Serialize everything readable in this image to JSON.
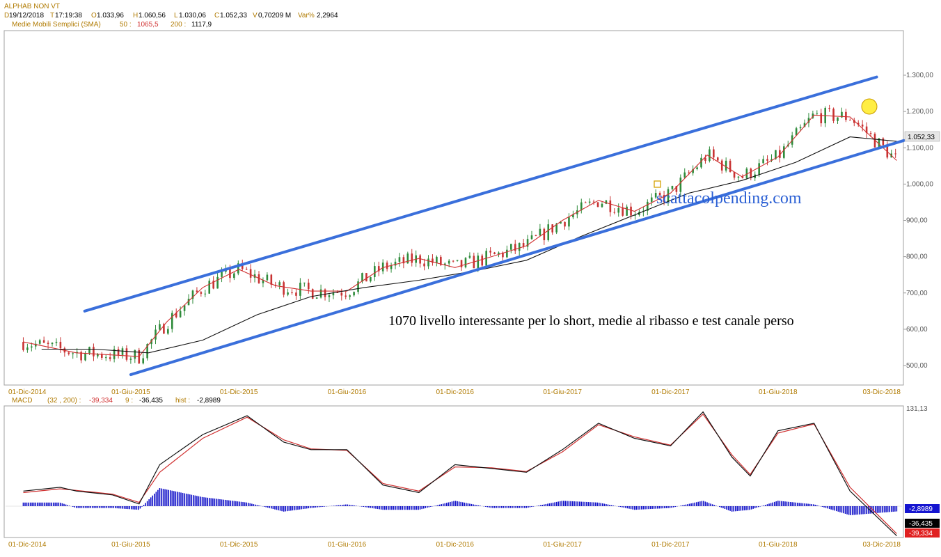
{
  "header": {
    "symbol": "ALPHAB NON VT",
    "d_key": "D",
    "date": "19/12/2018",
    "t_key": "T",
    "time": "17:19:38",
    "o_key": "O",
    "open": "1.033,96",
    "h_key": "H",
    "high": "1.060,56",
    "l_key": "L",
    "low": "1.030,06",
    "c_key": "C",
    "close": "1.052,33",
    "v_key": "V",
    "volume": "0,70209 M",
    "var_key": "Var%",
    "var": "2,2964"
  },
  "sma_header": {
    "label": "Medie Mobili Semplici (SMA)",
    "p1_key": "50 :",
    "p1_val": "1065,5",
    "p2_key": "200 :",
    "p2_val": "1117,9"
  },
  "macd_header": {
    "label": "MACD",
    "params": "(32 , 200) :",
    "macd_val": "-39,334",
    "sig_key": "9 :",
    "sig_val": "-36,435",
    "hist_key": "hist :",
    "hist_val": "-2,8989"
  },
  "annotations": {
    "watermark": "scattacolpending.com",
    "note": "1070  livello interessante per lo short, medie al ribasso e test canale perso"
  },
  "colors": {
    "channel": "#3a6fdb",
    "candle_up": "#2e8b3a",
    "candle_down": "#c83232",
    "sma50": "#d03030",
    "sma200": "#111111",
    "macd_line": "#111111",
    "signal_line": "#d03030",
    "histogram": "#1010c8",
    "tick_text": "#b07a00",
    "badge_close": "#e6e6e6",
    "badge_hist": "#1515d0",
    "badge_sig": "#000000",
    "badge_macd": "#e02020",
    "highlight": "#ffee44"
  },
  "chart_data": [
    {
      "type": "candlestick",
      "title": "",
      "x_ticks": [
        "01-Dic-2014",
        "01-Giu-2015",
        "01-Dic-2015",
        "01-Giu-2016",
        "01-Dic-2016",
        "01-Giu-2017",
        "01-Dic-2017",
        "01-Giu-2018",
        "03-Dic-2018"
      ],
      "y_ticks": [
        "500,00",
        "600,00",
        "700,00",
        "800,00",
        "900,00",
        "1.000,00",
        "1.100,00",
        "1.200,00",
        "1.300,00"
      ],
      "ylim": [
        475,
        1310
      ],
      "last_price_label": "1.052,33",
      "series": [
        {
          "name": "Medie Mobili Semplici (SMA) 50",
          "role": "sma50",
          "x": [
            "2014-12-01",
            "2015-03-01",
            "2015-06-15",
            "2015-08-01",
            "2015-10-01",
            "2015-12-01",
            "2016-02-01",
            "2016-04-01",
            "2016-06-01",
            "2016-08-01",
            "2016-10-01",
            "2016-12-01",
            "2017-02-01",
            "2017-04-01",
            "2017-06-01",
            "2017-08-01",
            "2017-10-01",
            "2017-12-01",
            "2018-02-01",
            "2018-04-01",
            "2018-06-01",
            "2018-08-01",
            "2018-10-01",
            "2018-12-19"
          ],
          "y": [
            565,
            535,
            525,
            620,
            715,
            765,
            720,
            705,
            705,
            770,
            795,
            770,
            800,
            830,
            900,
            955,
            925,
            975,
            1080,
            1020,
            1075,
            1190,
            1185,
            1065
          ]
        },
        {
          "name": "Medie Mobili Semplici (SMA) 200",
          "role": "sma200",
          "x": [
            "2015-01-01",
            "2015-04-01",
            "2015-07-01",
            "2015-10-01",
            "2016-01-01",
            "2016-04-01",
            "2016-07-01",
            "2016-10-01",
            "2017-01-01",
            "2017-04-01",
            "2017-07-01",
            "2017-10-01",
            "2018-01-01",
            "2018-04-01",
            "2018-07-01",
            "2018-10-01",
            "2018-12-19"
          ],
          "y": [
            545,
            545,
            535,
            570,
            640,
            690,
            715,
            735,
            760,
            790,
            855,
            915,
            975,
            1010,
            1060,
            1130,
            1118
          ]
        }
      ],
      "channel_upper": {
        "x": [
          "2015-03-15",
          "2018-11-15"
        ],
        "y": [
          650,
          1295
        ]
      },
      "channel_lower": {
        "x": [
          "2015-06-01",
          "2018-12-31"
        ],
        "y": [
          475,
          1120
        ]
      }
    },
    {
      "type": "line",
      "title": "MACD",
      "x_ticks": [
        "01-Dic-2014",
        "01-Giu-2015",
        "01-Dic-2015",
        "01-Giu-2016",
        "01-Dic-2016",
        "01-Giu-2017",
        "01-Dic-2017",
        "01-Giu-2018",
        "03-Dic-2018"
      ],
      "y_ticks": [
        "131,13"
      ],
      "ylim": [
        -45,
        131.13
      ],
      "series": [
        {
          "name": "MACD",
          "role": "macd",
          "x": [
            "2014-12-01",
            "2015-02-01",
            "2015-03-01",
            "2015-05-01",
            "2015-06-15",
            "2015-07-20",
            "2015-10-01",
            "2015-12-15",
            "2016-02-15",
            "2016-04-01",
            "2016-06-01",
            "2016-08-01",
            "2016-10-01",
            "2016-12-01",
            "2017-02-01",
            "2017-04-01",
            "2017-06-01",
            "2017-08-01",
            "2017-10-01",
            "2017-12-01",
            "2018-01-25",
            "2018-03-15",
            "2018-04-15",
            "2018-06-01",
            "2018-08-01",
            "2018-10-01",
            "2018-12-19"
          ],
          "y": [
            20,
            25,
            20,
            15,
            3,
            55,
            95,
            120,
            85,
            75,
            75,
            28,
            18,
            55,
            50,
            45,
            75,
            110,
            90,
            80,
            125,
            65,
            40,
            100,
            110,
            20,
            -39.334
          ]
        },
        {
          "name": "Signal 9",
          "role": "signal",
          "x": [
            "2014-12-01",
            "2015-02-01",
            "2015-03-01",
            "2015-05-01",
            "2015-06-15",
            "2015-07-20",
            "2015-10-01",
            "2015-12-15",
            "2016-02-15",
            "2016-04-01",
            "2016-06-01",
            "2016-08-01",
            "2016-10-01",
            "2016-12-01",
            "2017-02-01",
            "2017-04-01",
            "2017-06-01",
            "2017-08-01",
            "2017-10-01",
            "2017-12-01",
            "2018-01-25",
            "2018-03-15",
            "2018-04-15",
            "2018-06-01",
            "2018-08-01",
            "2018-10-01",
            "2018-12-19"
          ],
          "y": [
            18,
            23,
            21,
            16,
            5,
            45,
            90,
            118,
            88,
            76,
            74,
            30,
            20,
            52,
            51,
            46,
            72,
            108,
            92,
            81,
            122,
            68,
            42,
            97,
            109,
            25,
            -36.435
          ]
        }
      ],
      "badges": [
        "-2,8989",
        "-36,435",
        "-39,334"
      ]
    }
  ]
}
